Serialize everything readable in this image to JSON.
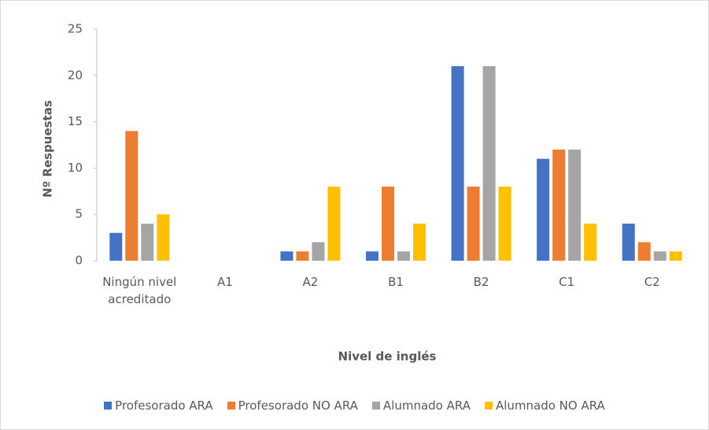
{
  "chart_data": {
    "type": "bar",
    "x_label": "Nivel de inglés",
    "y_label": "Nº Respuestas",
    "categories": [
      "Ningún nivel acreditado",
      "A1",
      "A2",
      "B1",
      "B2",
      "C1",
      "C2"
    ],
    "series": [
      {
        "name": "Profesorado ARA",
        "color": "#4472c4",
        "values": [
          3,
          0,
          1,
          1,
          21,
          11,
          4
        ]
      },
      {
        "name": "Profesorado NO ARA",
        "color": "#ed7d31",
        "values": [
          14,
          0,
          1,
          8,
          8,
          12,
          2
        ]
      },
      {
        "name": "Alumnado ARA",
        "color": "#a5a5a5",
        "values": [
          4,
          0,
          2,
          1,
          21,
          12,
          1
        ]
      },
      {
        "name": "Alumnado NO ARA",
        "color": "#ffc000",
        "values": [
          5,
          0,
          8,
          4,
          8,
          4,
          1
        ]
      }
    ],
    "ylim": [
      0,
      25
    ],
    "yticks": [
      0,
      5,
      10,
      15,
      20,
      25
    ],
    "grid": false,
    "legend": "bottom"
  }
}
